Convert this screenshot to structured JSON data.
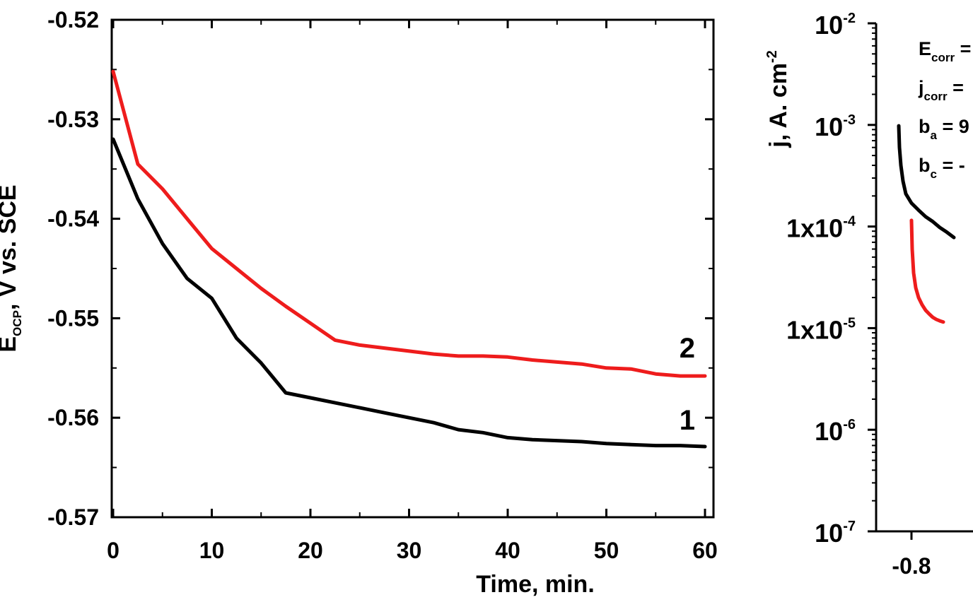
{
  "chart_data": [
    {
      "type": "line",
      "xlabel": "Time, min.",
      "ylabel_main": "E",
      "ylabel_sub": "OCP",
      "ylabel_rest": ", V vs. SCE",
      "xlim": [
        0,
        60
      ],
      "ylim": [
        -0.57,
        -0.52
      ],
      "xticks": [
        "0",
        "10",
        "20",
        "30",
        "40",
        "50",
        "60"
      ],
      "yticks": [
        "-0.57",
        "-0.56",
        "-0.55",
        "-0.54",
        "-0.53",
        "-0.52"
      ],
      "grid": false,
      "series": [
        {
          "name": "1",
          "color": "#000000",
          "x": [
            0,
            2.5,
            5,
            7.5,
            10,
            12.5,
            15,
            17.5,
            20,
            22.5,
            25,
            27.5,
            30,
            32.5,
            35,
            37.5,
            40,
            42.5,
            45,
            47.5,
            50,
            52.5,
            55,
            57.5,
            60
          ],
          "y": [
            -0.532,
            -0.538,
            -0.5425,
            -0.546,
            -0.548,
            -0.552,
            -0.5545,
            -0.5575,
            -0.558,
            -0.5585,
            -0.559,
            -0.5595,
            -0.56,
            -0.5605,
            -0.5612,
            -0.5615,
            -0.562,
            -0.5622,
            -0.5623,
            -0.5624,
            -0.5626,
            -0.5627,
            -0.5628,
            -0.5628,
            -0.5629
          ]
        },
        {
          "name": "2",
          "color": "#ee1c1c",
          "x": [
            0,
            2.5,
            5,
            7.5,
            10,
            12.5,
            15,
            17.5,
            20,
            22.5,
            25,
            27.5,
            30,
            32.5,
            35,
            37.5,
            40,
            42.5,
            45,
            47.5,
            50,
            52.5,
            55,
            57.5,
            60
          ],
          "y": [
            -0.5252,
            -0.5345,
            -0.537,
            -0.54,
            -0.543,
            -0.545,
            -0.547,
            -0.5488,
            -0.5505,
            -0.5522,
            -0.5527,
            -0.553,
            -0.5533,
            -0.5536,
            -0.5538,
            -0.5538,
            -0.5539,
            -0.5542,
            -0.5544,
            -0.5546,
            -0.555,
            -0.5551,
            -0.5556,
            -0.5558,
            -0.5558
          ]
        }
      ]
    },
    {
      "type": "line",
      "ylabel": "j, A. cm",
      "ylabel_sup": "-2",
      "yscale": "log",
      "ylim": [
        1e-07,
        0.01
      ],
      "xticks": [
        "-0.8"
      ],
      "ytick_labels": [
        {
          "base": "10",
          "exp": "-2"
        },
        {
          "base": "10",
          "exp": "-3"
        },
        {
          "base": "1x10",
          "exp": "-4"
        },
        {
          "base": "1x10",
          "exp": "-5"
        },
        {
          "base": "10",
          "exp": "-6"
        },
        {
          "base": "10",
          "exp": "-7"
        }
      ],
      "annotations": [
        {
          "main": "E",
          "sub": "corr",
          "rest": " ="
        },
        {
          "main": "j",
          "sub": "corr",
          "rest": " ="
        },
        {
          "main": "b",
          "sub": "a",
          "rest": " = 9"
        },
        {
          "main": "b",
          "sub": "c",
          "rest": " = -"
        }
      ],
      "series": [
        {
          "color": "#000000",
          "x": [
            -0.818,
            -0.817,
            -0.815,
            -0.812,
            -0.808,
            -0.8,
            -0.79,
            -0.78,
            -0.77,
            -0.76,
            -0.75,
            -0.74
          ],
          "y": [
            0.00098,
            0.0006,
            0.0004,
            0.00028,
            0.00021,
            0.00017,
            0.000145,
            0.000125,
            0.000112,
            9.8e-05,
            8.8e-05,
            7.8e-05
          ]
        },
        {
          "color": "#ee1c1c",
          "x": [
            -0.8,
            -0.799,
            -0.797,
            -0.794,
            -0.79,
            -0.785,
            -0.78,
            -0.775,
            -0.77,
            -0.765,
            -0.76,
            -0.755
          ],
          "y": [
            0.000115,
            6e-05,
            3.5e-05,
            2.5e-05,
            2e-05,
            1.7e-05,
            1.5e-05,
            1.38e-05,
            1.28e-05,
            1.22e-05,
            1.18e-05,
            1.15e-05
          ]
        }
      ]
    }
  ]
}
